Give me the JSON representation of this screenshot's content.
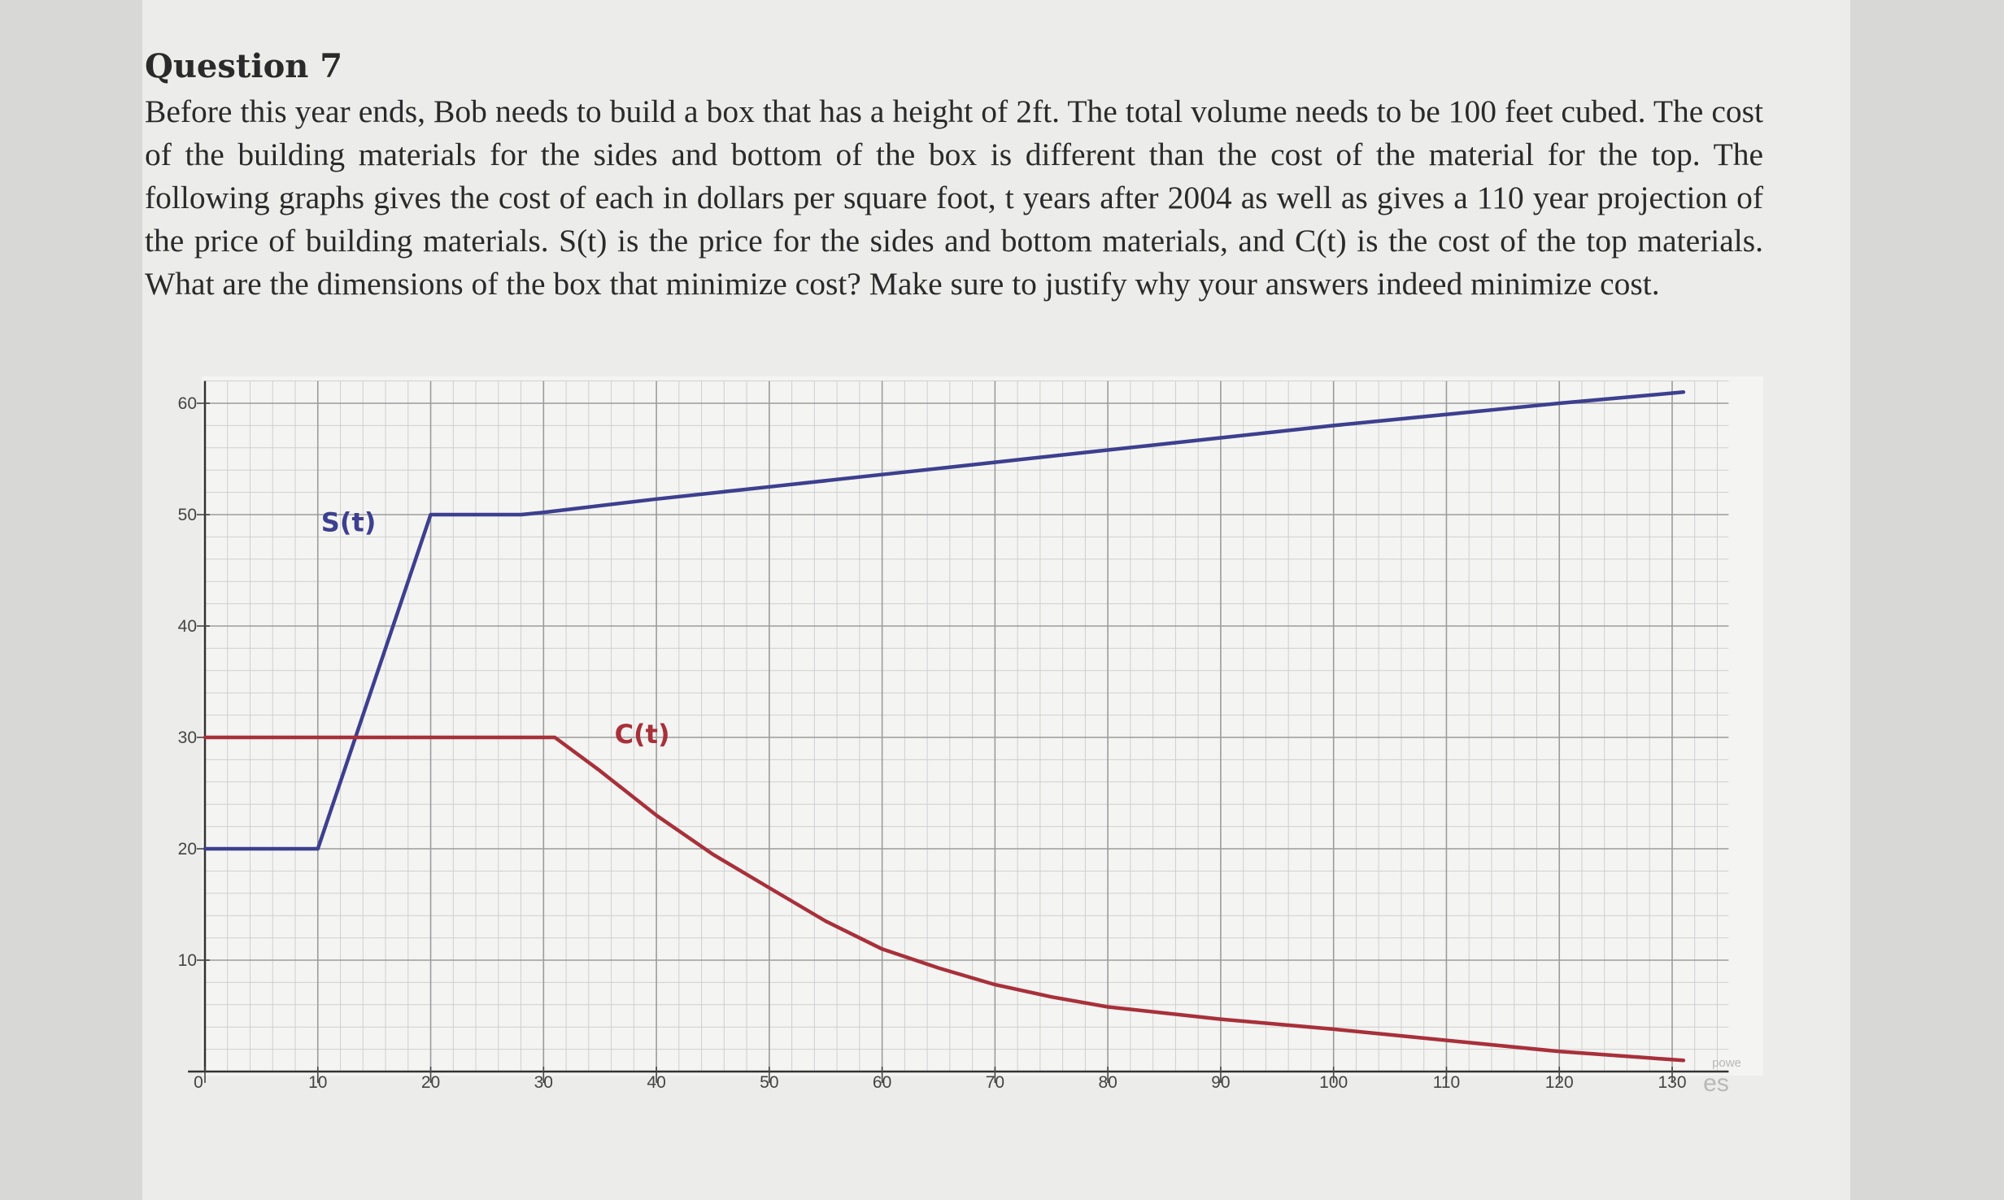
{
  "question": {
    "title": "Question 7",
    "text": "Before this year ends, Bob needs to build a box that has a height of 2ft. The total volume needs to be 100 feet cubed. The cost of the building materials for the sides and bottom of the box is different than the cost of the material for the top. The following graphs gives the cost of each in dollars per square foot, t years after 2004 as well as gives a 110 year projection of the price of building materials. S(t) is the price for the sides and bottom materials, and C(t) is the cost of the top materials. What are the dimensions of the box that minimize cost? Make sure to justify why your answers indeed minimize cost."
  },
  "chart_data": {
    "type": "line",
    "xlim": [
      0,
      135
    ],
    "ylim": [
      0,
      62
    ],
    "x_ticks": [
      "0",
      "10",
      "20",
      "30",
      "40",
      "50",
      "60",
      "70",
      "80",
      "90",
      "100",
      "110",
      "120",
      "130"
    ],
    "y_ticks": [
      "10",
      "20",
      "30",
      "40",
      "50",
      "60"
    ],
    "grid": true,
    "series": [
      {
        "name": "S(t)",
        "color": "#3d3f8f",
        "points": [
          [
            0,
            20
          ],
          [
            10,
            20
          ],
          [
            20,
            50
          ],
          [
            28,
            50
          ],
          [
            30,
            50.2
          ],
          [
            40,
            51.4
          ],
          [
            50,
            52.5
          ],
          [
            60,
            53.6
          ],
          [
            70,
            54.7
          ],
          [
            80,
            55.8
          ],
          [
            90,
            56.9
          ],
          [
            100,
            58
          ],
          [
            110,
            59
          ],
          [
            120,
            60
          ],
          [
            131,
            61
          ]
        ]
      },
      {
        "name": "C(t)",
        "color": "#a8303a",
        "points": [
          [
            0,
            30
          ],
          [
            31,
            30
          ],
          [
            35,
            27
          ],
          [
            40,
            23
          ],
          [
            45,
            19.5
          ],
          [
            50,
            16.5
          ],
          [
            55,
            13.5
          ],
          [
            60,
            11
          ],
          [
            65,
            9.3
          ],
          [
            70,
            7.8
          ],
          [
            75,
            6.7
          ],
          [
            80,
            5.8
          ],
          [
            90,
            4.7
          ],
          [
            100,
            3.8
          ],
          [
            110,
            2.8
          ],
          [
            120,
            1.8
          ],
          [
            131,
            1
          ]
        ]
      }
    ],
    "labels": [
      {
        "text": "S(t)",
        "x": 10,
        "y": 48.5,
        "color": "#3d3f8f"
      },
      {
        "text": "C(t)",
        "x": 36,
        "y": 29.5,
        "color": "#a8303a"
      }
    ],
    "watermark": [
      "powe",
      "es"
    ]
  }
}
